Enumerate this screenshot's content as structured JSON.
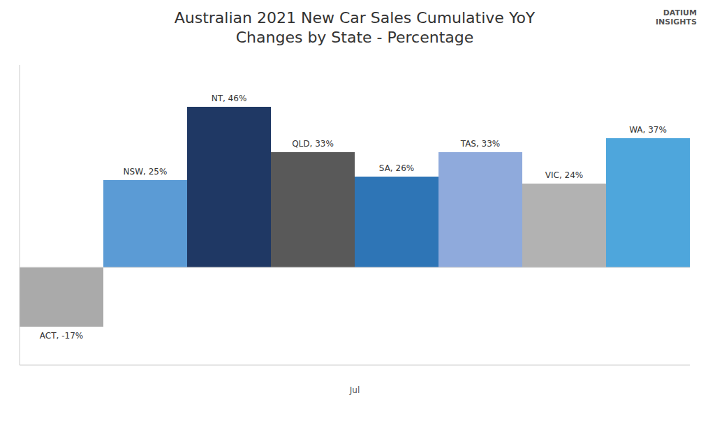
{
  "chart_data": {
    "type": "bar",
    "title": "Australian 2021 New Car Sales Cumulative YoY\nChanges by State - Percentage",
    "categories": [
      "ACT",
      "NSW",
      "NT",
      "QLD",
      "SA",
      "TAS",
      "VIC",
      "WA"
    ],
    "values": [
      -17,
      25,
      46,
      33,
      26,
      33,
      24,
      37
    ],
    "value_labels": [
      "ACT, -17%",
      "NSW, 25%",
      "NT, 46%",
      "QLD, 33%",
      "SA, 26%",
      "TAS, 33%",
      "VIC, 24%",
      "WA, 37%"
    ],
    "colors": [
      "#aaaaaa",
      "#5b9bd5",
      "#1f3864",
      "#595959",
      "#2e75b6",
      "#8faadc",
      "#b2b2b2",
      "#4ea6dc"
    ],
    "xlabel": "Jul",
    "ylim": [
      -28,
      58
    ],
    "tick_labels": false,
    "data_labels": true,
    "grid": false,
    "annotations": [
      "DATIUM\nINSIGHTS"
    ]
  }
}
